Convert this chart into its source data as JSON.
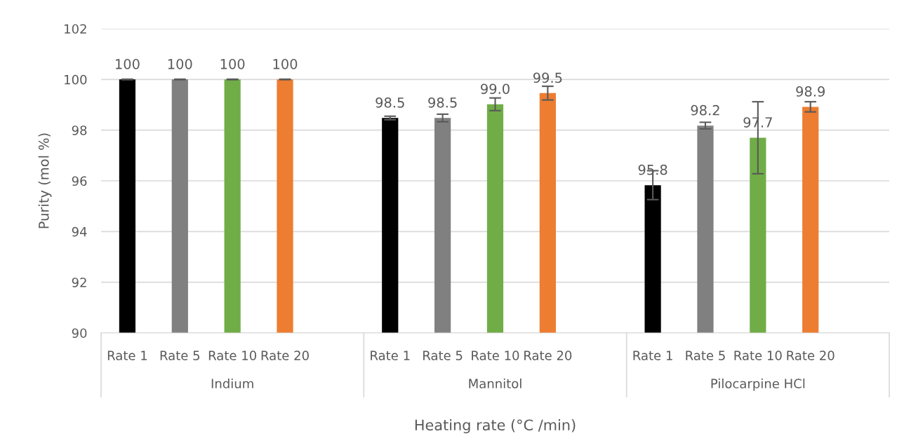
{
  "chart_data": {
    "type": "bar",
    "categories": [
      "Rate 1",
      "Rate 5",
      "Rate 10",
      "Rate 20",
      null,
      "Rate 1",
      "Rate 5",
      "Rate 10",
      "Rate 20",
      null,
      "Rate 1",
      "Rate 5",
      "Rate 10",
      "Rate 20",
      null
    ],
    "values": [
      100,
      100,
      100,
      100,
      null,
      98.48,
      98.48,
      99.02,
      99.46,
      null,
      95.83,
      98.18,
      97.7,
      98.92,
      null
    ],
    "colors": [
      "#000000",
      "#808080",
      "#70ad47",
      "#ed7d31",
      null,
      "#000000",
      "#808080",
      "#70ad47",
      "#ed7d31",
      null,
      "#000000",
      "#808080",
      "#70ad47",
      "#ed7d31",
      null
    ],
    "errors": [
      0.01,
      0.01,
      0.01,
      0.01,
      null,
      0.07,
      0.15,
      0.25,
      0.27,
      null,
      0.57,
      0.13,
      1.42,
      0.2,
      null
    ],
    "value_labels": [
      "100",
      "100",
      "100",
      "100",
      null,
      "98.5",
      "98.5",
      "99.0",
      "99.5",
      null,
      "95.8",
      "98.2",
      "97.7",
      "98.9",
      null
    ],
    "annotations": [
      "Indium",
      "Mannitol",
      "Pilocarpine HCl"
    ],
    "xlabel": "Heating rate (°C /min)",
    "ylabel": "Purity (mol %)",
    "ylim": [
      90,
      102
    ],
    "yticks": [
      90,
      92,
      94,
      96,
      98,
      100,
      102
    ],
    "grid": "y",
    "legend": false
  }
}
